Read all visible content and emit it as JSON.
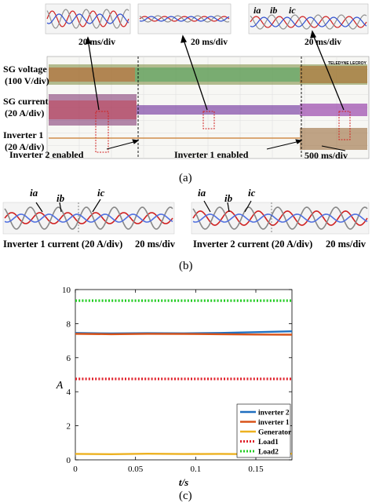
{
  "panel_a": {
    "insets": [
      {
        "time_div": "20 ms/div"
      },
      {
        "time_div": "20 ms/div"
      },
      {
        "time_div": "20 ms/div",
        "phase_labels": [
          "ia",
          "ib",
          "ic"
        ]
      }
    ],
    "channel_labels": [
      "SG voltage",
      "(100 V/div)",
      "SG current",
      "(20 A/div)",
      "Inverter 1",
      "(20 A/div)"
    ],
    "events": [
      "Inverter 2 enabled",
      "Inverter 1 enabled"
    ],
    "main_time_div": "500 ms/div",
    "brand": "TELEDYNE LECROY",
    "label": "(a)"
  },
  "panel_b": {
    "left": {
      "phase_labels": [
        "ia",
        "ib",
        "ic"
      ],
      "caption": "Inverter 1 current (20 A/div)",
      "time_div": "20 ms/div"
    },
    "right": {
      "phase_labels": [
        "ia",
        "ib",
        "ic"
      ],
      "caption": "Inverter 2 current (20 A/div)",
      "time_div": "20 ms/div"
    },
    "label": "(b)"
  },
  "panel_c_label": "(c)",
  "chart_data": {
    "type": "line",
    "xlabel": "t/s",
    "ylabel": "A",
    "xlim": [
      0,
      0.18
    ],
    "ylim": [
      0,
      10
    ],
    "xticks": [
      0,
      0.05,
      0.1,
      0.15
    ],
    "yticks": [
      0,
      2,
      4,
      6,
      8,
      10
    ],
    "xtick_labels": [
      "0",
      "0.05",
      "0.1",
      "0.15"
    ],
    "ytick_labels": [
      "0",
      "2",
      "4",
      "6",
      "8",
      "10"
    ],
    "legend_position": "bottom-right",
    "grid": false,
    "series": [
      {
        "name": "inverter 2",
        "color": "#1f6fbf",
        "style": "solid",
        "x": [
          0,
          0.03,
          0.06,
          0.09,
          0.12,
          0.15,
          0.18
        ],
        "y": [
          7.45,
          7.42,
          7.44,
          7.43,
          7.45,
          7.5,
          7.55
        ]
      },
      {
        "name": "inverter 1",
        "color": "#d95319",
        "style": "solid",
        "x": [
          0,
          0.03,
          0.06,
          0.09,
          0.12,
          0.15,
          0.18
        ],
        "y": [
          7.4,
          7.38,
          7.4,
          7.39,
          7.38,
          7.36,
          7.35
        ]
      },
      {
        "name": "Generator",
        "color": "#edb120",
        "style": "solid",
        "x": [
          0,
          0.03,
          0.06,
          0.09,
          0.12,
          0.15,
          0.18
        ],
        "y": [
          0.35,
          0.33,
          0.36,
          0.34,
          0.35,
          0.33,
          0.36
        ]
      },
      {
        "name": "Load1",
        "color": "#e0202a",
        "style": "dotted",
        "x": [
          0,
          0.03,
          0.06,
          0.09,
          0.12,
          0.15,
          0.18
        ],
        "y": [
          4.75,
          4.75,
          4.75,
          4.75,
          4.75,
          4.75,
          4.75
        ]
      },
      {
        "name": "Load2",
        "color": "#22cc22",
        "style": "dotted",
        "x": [
          0,
          0.03,
          0.06,
          0.09,
          0.12,
          0.15,
          0.18
        ],
        "y": [
          9.35,
          9.35,
          9.35,
          9.35,
          9.35,
          9.35,
          9.35
        ]
      }
    ]
  }
}
